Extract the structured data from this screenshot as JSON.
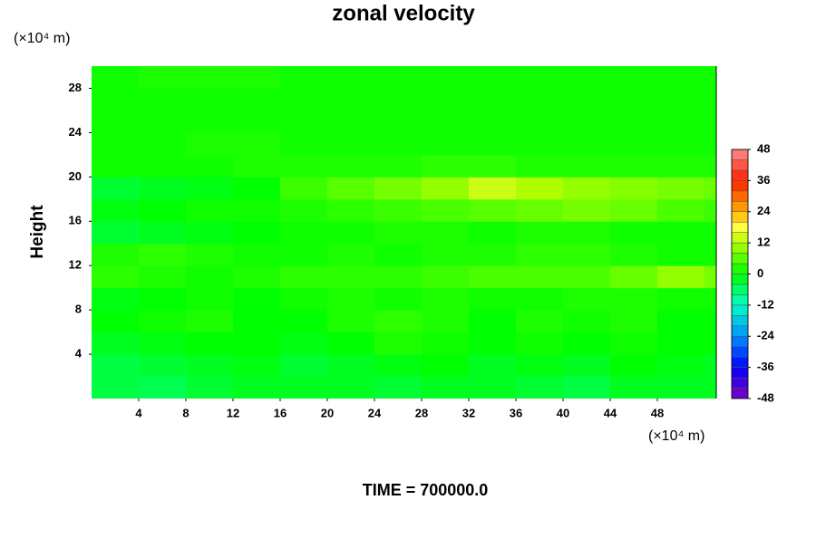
{
  "chart_data": {
    "type": "heatmap",
    "title": "zonal velocity",
    "x_unit": "(×10⁴ m)",
    "y_unit": "(×10⁴ m)",
    "ylabel": "Height",
    "footer": "TIME = 700000.0",
    "x": [
      2,
      6,
      10,
      14,
      18,
      22,
      26,
      30,
      34,
      38,
      42,
      46,
      50,
      54
    ],
    "y": [
      1,
      3,
      5,
      7,
      9,
      11,
      13,
      15,
      17,
      19,
      21,
      23,
      25,
      27,
      29
    ],
    "z": [
      [
        -4,
        -5,
        -3,
        -2,
        -2,
        -2,
        -3,
        -2,
        -2,
        -3,
        -4,
        -2,
        -2,
        -2
      ],
      [
        -4,
        -3,
        -2,
        -1,
        -3,
        -2,
        -1,
        0,
        -2,
        -1,
        -2,
        0,
        -1,
        -2
      ],
      [
        -2,
        -1,
        0,
        0,
        -1,
        0,
        2,
        1,
        0,
        1,
        0,
        1,
        0,
        0
      ],
      [
        0,
        1,
        2,
        0,
        0,
        2,
        3,
        2,
        0,
        2,
        1,
        2,
        0,
        0
      ],
      [
        -1,
        0,
        1,
        0,
        1,
        2,
        1,
        2,
        1,
        1,
        2,
        2,
        1,
        1
      ],
      [
        3,
        2,
        1,
        2,
        3,
        3,
        3,
        4,
        5,
        5,
        5,
        7,
        10,
        8
      ],
      [
        2,
        3,
        2,
        1,
        1,
        2,
        1,
        2,
        2,
        3,
        3,
        2,
        1,
        1
      ],
      [
        -3,
        -2,
        -1,
        0,
        1,
        1,
        2,
        2,
        1,
        2,
        2,
        1,
        1,
        1
      ],
      [
        -1,
        0,
        1,
        1,
        2,
        3,
        4,
        5,
        6,
        7,
        8,
        7,
        5,
        4
      ],
      [
        -3,
        -2,
        -1,
        0,
        4,
        6,
        8,
        10,
        14,
        12,
        10,
        9,
        8,
        7
      ],
      [
        1,
        1,
        1,
        2,
        2,
        2,
        2,
        3,
        3,
        2,
        2,
        2,
        2,
        2
      ],
      [
        1,
        1,
        2,
        2,
        1,
        1,
        1,
        1,
        1,
        1,
        1,
        1,
        1,
        1
      ],
      [
        1,
        1,
        1,
        1,
        1,
        1,
        1,
        1,
        1,
        1,
        1,
        1,
        1,
        1
      ],
      [
        1,
        1,
        1,
        1,
        1,
        1,
        1,
        1,
        1,
        1,
        1,
        1,
        1,
        1
      ],
      [
        1,
        2,
        2,
        2,
        1,
        1,
        1,
        1,
        1,
        1,
        1,
        1,
        1,
        1
      ]
    ],
    "xlim": [
      0,
      53
    ],
    "ylim": [
      0,
      30
    ],
    "xticks": [
      4,
      8,
      12,
      16,
      20,
      24,
      28,
      32,
      36,
      40,
      44,
      48
    ],
    "yticks": [
      4,
      8,
      12,
      16,
      20,
      24,
      28
    ],
    "zlim": [
      -48,
      48
    ],
    "zstep": 4,
    "colorbar_ticks": [
      48,
      36,
      24,
      12,
      0,
      -12,
      -24,
      -36,
      -48
    ],
    "colorscale": [
      [
        -48,
        "#8000c0"
      ],
      [
        -36,
        "#0000ff"
      ],
      [
        -24,
        "#0090ff"
      ],
      [
        -12,
        "#00ffc8"
      ],
      [
        0,
        "#00ff00"
      ],
      [
        12,
        "#b0ff00"
      ],
      [
        18,
        "#ffff40"
      ],
      [
        24,
        "#ffb000"
      ],
      [
        36,
        "#ff2000"
      ],
      [
        48,
        "#ff8c8c"
      ]
    ]
  }
}
